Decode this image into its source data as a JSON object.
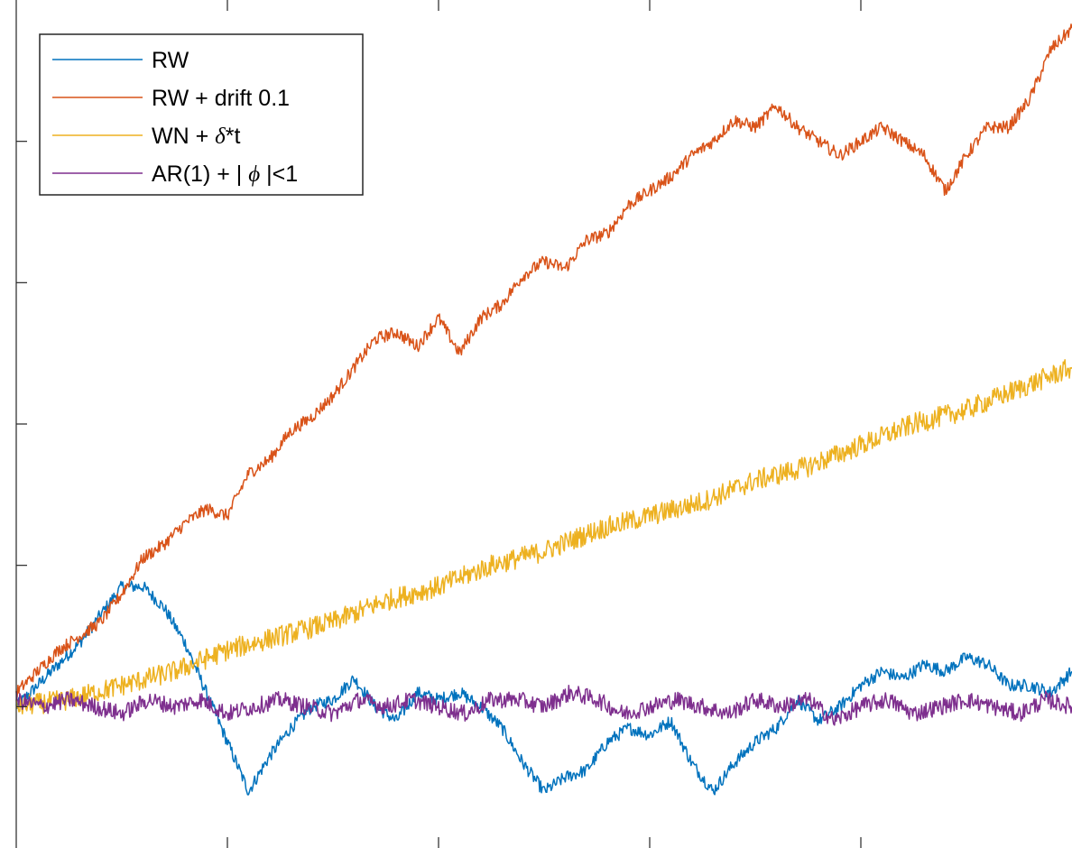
{
  "chart_data": {
    "type": "line",
    "title": "",
    "xlabel": "",
    "ylabel": "",
    "xlim": [
      0,
      1000
    ],
    "ylim": [
      -20,
      100
    ],
    "grid": false,
    "legend_position": "top-left",
    "series": [
      {
        "name": "RW",
        "color": "#0072BD",
        "x": [
          0,
          20,
          40,
          60,
          80,
          100,
          120,
          140,
          160,
          180,
          200,
          220,
          240,
          260,
          280,
          300,
          320,
          340,
          360,
          380,
          400,
          420,
          440,
          460,
          480,
          500,
          520,
          540,
          560,
          580,
          600,
          620,
          640,
          660,
          680,
          700,
          720,
          740,
          760,
          780,
          800,
          820,
          840,
          860,
          880,
          900,
          920,
          940,
          960,
          980,
          1000
        ],
        "values": [
          0,
          3,
          6,
          9,
          13,
          17,
          17,
          14,
          9,
          2,
          -5,
          -12,
          -7,
          -3,
          0,
          1,
          4,
          0,
          -2,
          2,
          1,
          2,
          0,
          -3,
          -8,
          -12,
          -10,
          -9,
          -5,
          -3,
          -4,
          -2,
          -8,
          -12,
          -8,
          -5,
          -3,
          1,
          -2,
          0,
          3,
          5,
          4,
          6,
          5,
          7,
          6,
          3,
          3,
          2,
          5
        ]
      },
      {
        "name": "RW + drift 0.1",
        "color": "#D95319",
        "x": [
          0,
          20,
          40,
          60,
          80,
          100,
          120,
          140,
          160,
          180,
          200,
          220,
          240,
          260,
          280,
          300,
          320,
          340,
          360,
          380,
          400,
          420,
          440,
          460,
          480,
          500,
          520,
          540,
          560,
          580,
          600,
          620,
          640,
          660,
          680,
          700,
          720,
          740,
          760,
          780,
          800,
          820,
          840,
          860,
          880,
          900,
          920,
          940,
          960,
          980,
          1000
        ],
        "values": [
          2,
          5,
          8,
          10,
          12,
          16,
          21,
          23,
          26,
          28,
          27,
          33,
          35,
          39,
          41,
          44,
          48,
          52,
          53,
          51,
          55,
          50,
          55,
          57,
          61,
          63,
          62,
          66,
          67,
          71,
          73,
          75,
          78,
          80,
          83,
          82,
          85,
          82,
          80,
          78,
          80,
          82,
          80,
          78,
          73,
          78,
          82,
          82,
          86,
          93,
          96
        ]
      },
      {
        "name": "WN + δ*t",
        "color": "#EDB120",
        "x": [
          0,
          50,
          100,
          150,
          200,
          250,
          300,
          350,
          400,
          450,
          500,
          550,
          600,
          650,
          700,
          750,
          800,
          850,
          900,
          950,
          1000
        ],
        "values": [
          0,
          1,
          3,
          5,
          8,
          10,
          12,
          15,
          17,
          20,
          22,
          25,
          27,
          29,
          32,
          34,
          37,
          40,
          42,
          45,
          48
        ]
      },
      {
        "name": "AR(1) + | ϕ |<1",
        "color": "#7E2F8E",
        "x": [
          0,
          25,
          50,
          75,
          100,
          125,
          150,
          175,
          200,
          225,
          250,
          275,
          300,
          325,
          350,
          375,
          400,
          425,
          450,
          475,
          500,
          525,
          550,
          575,
          600,
          625,
          650,
          675,
          700,
          725,
          750,
          775,
          800,
          825,
          850,
          875,
          900,
          925,
          950,
          975,
          1000
        ],
        "values": [
          1,
          0,
          1,
          0,
          -1,
          1,
          0,
          1,
          -1,
          0,
          1,
          0,
          -1,
          1,
          0,
          1,
          0,
          -1,
          1,
          1,
          0,
          2,
          1,
          -1,
          0,
          1,
          0,
          -1,
          1,
          0,
          1,
          -2,
          0,
          1,
          -1,
          0,
          1,
          0,
          -1,
          1,
          0
        ]
      }
    ],
    "legend": {
      "entries": [
        {
          "label": "RW",
          "series": 0
        },
        {
          "label": "RW + drift 0.1",
          "series": 1
        },
        {
          "label_prefix": "WN + ",
          "label_symbol": "δ",
          "label_suffix": "*t",
          "series": 2
        },
        {
          "label_prefix": "AR(1) + | ",
          "label_symbol": "ϕ",
          "label_suffix": " |<1",
          "series": 3
        }
      ]
    },
    "axis": {
      "x_ticks": [
        200,
        400,
        600,
        800
      ],
      "y_ticks": [
        0,
        20,
        40,
        60,
        80
      ]
    }
  }
}
